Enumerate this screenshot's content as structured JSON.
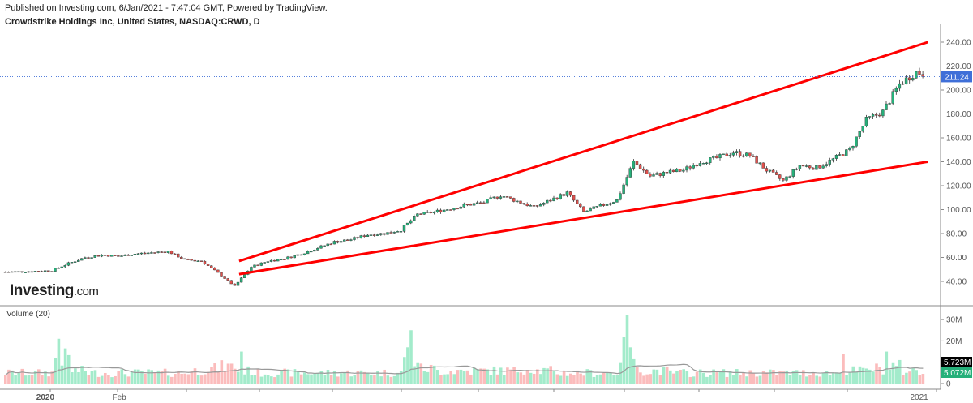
{
  "header": {
    "published": "Published on Investing.com, 6/Jan/2021 - 7:47:04 GMT, Powered by TradingView.",
    "title": "Crowdstrike Holdings Inc, United States, NASDAQ:CRWD, D"
  },
  "logo": {
    "main": "Investing",
    "suffix": ".com"
  },
  "colors": {
    "up": "#26b07a",
    "down": "#e2504c",
    "vol_up": "#a3ebcb",
    "vol_down": "#fbbcbc",
    "trendline": "#ff0000",
    "price_line": "#3f6fd8",
    "ma": "#999999"
  },
  "chart_data": [
    {
      "type": "candlestick",
      "interval": "D",
      "yaxis_side": "right",
      "ylim": [
        25,
        245
      ],
      "yticks": [
        "240.00",
        "220.00",
        "200.00",
        "180.00",
        "160.00",
        "140.00",
        "120.00",
        "100.00",
        "80.00",
        "60.00",
        "40.00"
      ],
      "xtick_labels": [
        {
          "date": "2020-01-02",
          "label": "2020"
        },
        {
          "date": "2020-02-03",
          "label": "Feb"
        },
        {
          "date": "2021-01-04",
          "label": "2021"
        }
      ],
      "last_price": {
        "value": 211.24,
        "label": "211.24"
      },
      "weekly_closes": [
        [
          "2019-12-16",
          48
        ],
        [
          "2019-12-23",
          48.5
        ],
        [
          "2019-12-30",
          49
        ],
        [
          "2020-01-06",
          55
        ],
        [
          "2020-01-13",
          60
        ],
        [
          "2020-01-20",
          62
        ],
        [
          "2020-01-27",
          61
        ],
        [
          "2020-02-03",
          63
        ],
        [
          "2020-02-10",
          64
        ],
        [
          "2020-02-17",
          65
        ],
        [
          "2020-02-24",
          58
        ],
        [
          "2020-03-02",
          57
        ],
        [
          "2020-03-09",
          47
        ],
        [
          "2020-03-16",
          36
        ],
        [
          "2020-03-23",
          52
        ],
        [
          "2020-03-30",
          57
        ],
        [
          "2020-04-06",
          59
        ],
        [
          "2020-04-13",
          63
        ],
        [
          "2020-04-20",
          68
        ],
        [
          "2020-04-27",
          73
        ],
        [
          "2020-05-04",
          75
        ],
        [
          "2020-05-11",
          79
        ],
        [
          "2020-05-18",
          80
        ],
        [
          "2020-05-25",
          83
        ],
        [
          "2020-06-01",
          96
        ],
        [
          "2020-06-08",
          98
        ],
        [
          "2020-06-15",
          101
        ],
        [
          "2020-06-22",
          104
        ],
        [
          "2020-06-29",
          106
        ],
        [
          "2020-07-06",
          112
        ],
        [
          "2020-07-13",
          107
        ],
        [
          "2020-07-20",
          102
        ],
        [
          "2020-07-27",
          108
        ],
        [
          "2020-08-03",
          114
        ],
        [
          "2020-08-10",
          98
        ],
        [
          "2020-08-17",
          103
        ],
        [
          "2020-08-24",
          108
        ],
        [
          "2020-08-31",
          140
        ],
        [
          "2020-09-07",
          128
        ],
        [
          "2020-09-14",
          131
        ],
        [
          "2020-09-21",
          133
        ],
        [
          "2020-09-28",
          140
        ],
        [
          "2020-10-05",
          143
        ],
        [
          "2020-10-12",
          148
        ],
        [
          "2020-10-19",
          145
        ],
        [
          "2020-10-26",
          133
        ],
        [
          "2020-11-02",
          124
        ],
        [
          "2020-11-09",
          137
        ],
        [
          "2020-11-16",
          135
        ],
        [
          "2020-11-23",
          142
        ],
        [
          "2020-11-30",
          150
        ],
        [
          "2020-12-07",
          175
        ],
        [
          "2020-12-14",
          182
        ],
        [
          "2020-12-21",
          205
        ],
        [
          "2020-12-28",
          215
        ],
        [
          "2021-01-04",
          211.24
        ]
      ],
      "trendlines": [
        {
          "name": "upper",
          "from": [
            "2020-03-24",
            57
          ],
          "to": [
            "2021-01-08",
            240
          ]
        },
        {
          "name": "lower",
          "from": [
            "2020-03-24",
            46
          ],
          "to": [
            "2021-01-08",
            140
          ]
        }
      ]
    },
    {
      "type": "bar",
      "title": "Volume (20)",
      "ylim": [
        0,
        35
      ],
      "unit": "M",
      "yticks": [
        "30M",
        "20M",
        "0"
      ],
      "ma_label": {
        "value": "5.723M"
      },
      "last_volume_label": {
        "value": "5.072M"
      },
      "weekly_volumes_m": [
        5,
        5,
        5,
        12,
        6,
        5,
        5,
        5,
        5,
        5,
        5,
        6,
        7,
        8,
        6,
        5,
        5,
        5,
        5,
        5,
        5,
        5,
        5,
        5,
        11,
        7,
        6,
        6,
        6,
        6,
        6,
        7,
        6,
        5,
        5,
        5,
        5,
        13,
        6,
        6,
        5,
        5,
        5,
        5,
        5,
        5,
        5,
        5,
        5,
        5,
        5,
        6,
        7,
        8,
        6,
        5
      ],
      "spikes_m": [
        [
          "2020-01-07",
          21
        ],
        [
          "2020-03-24",
          15
        ],
        [
          "2020-06-02",
          17
        ],
        [
          "2020-06-03",
          25
        ],
        [
          "2020-09-01",
          22
        ],
        [
          "2020-09-02",
          32
        ],
        [
          "2020-12-02",
          14
        ],
        [
          "2020-12-21",
          15
        ]
      ]
    }
  ]
}
